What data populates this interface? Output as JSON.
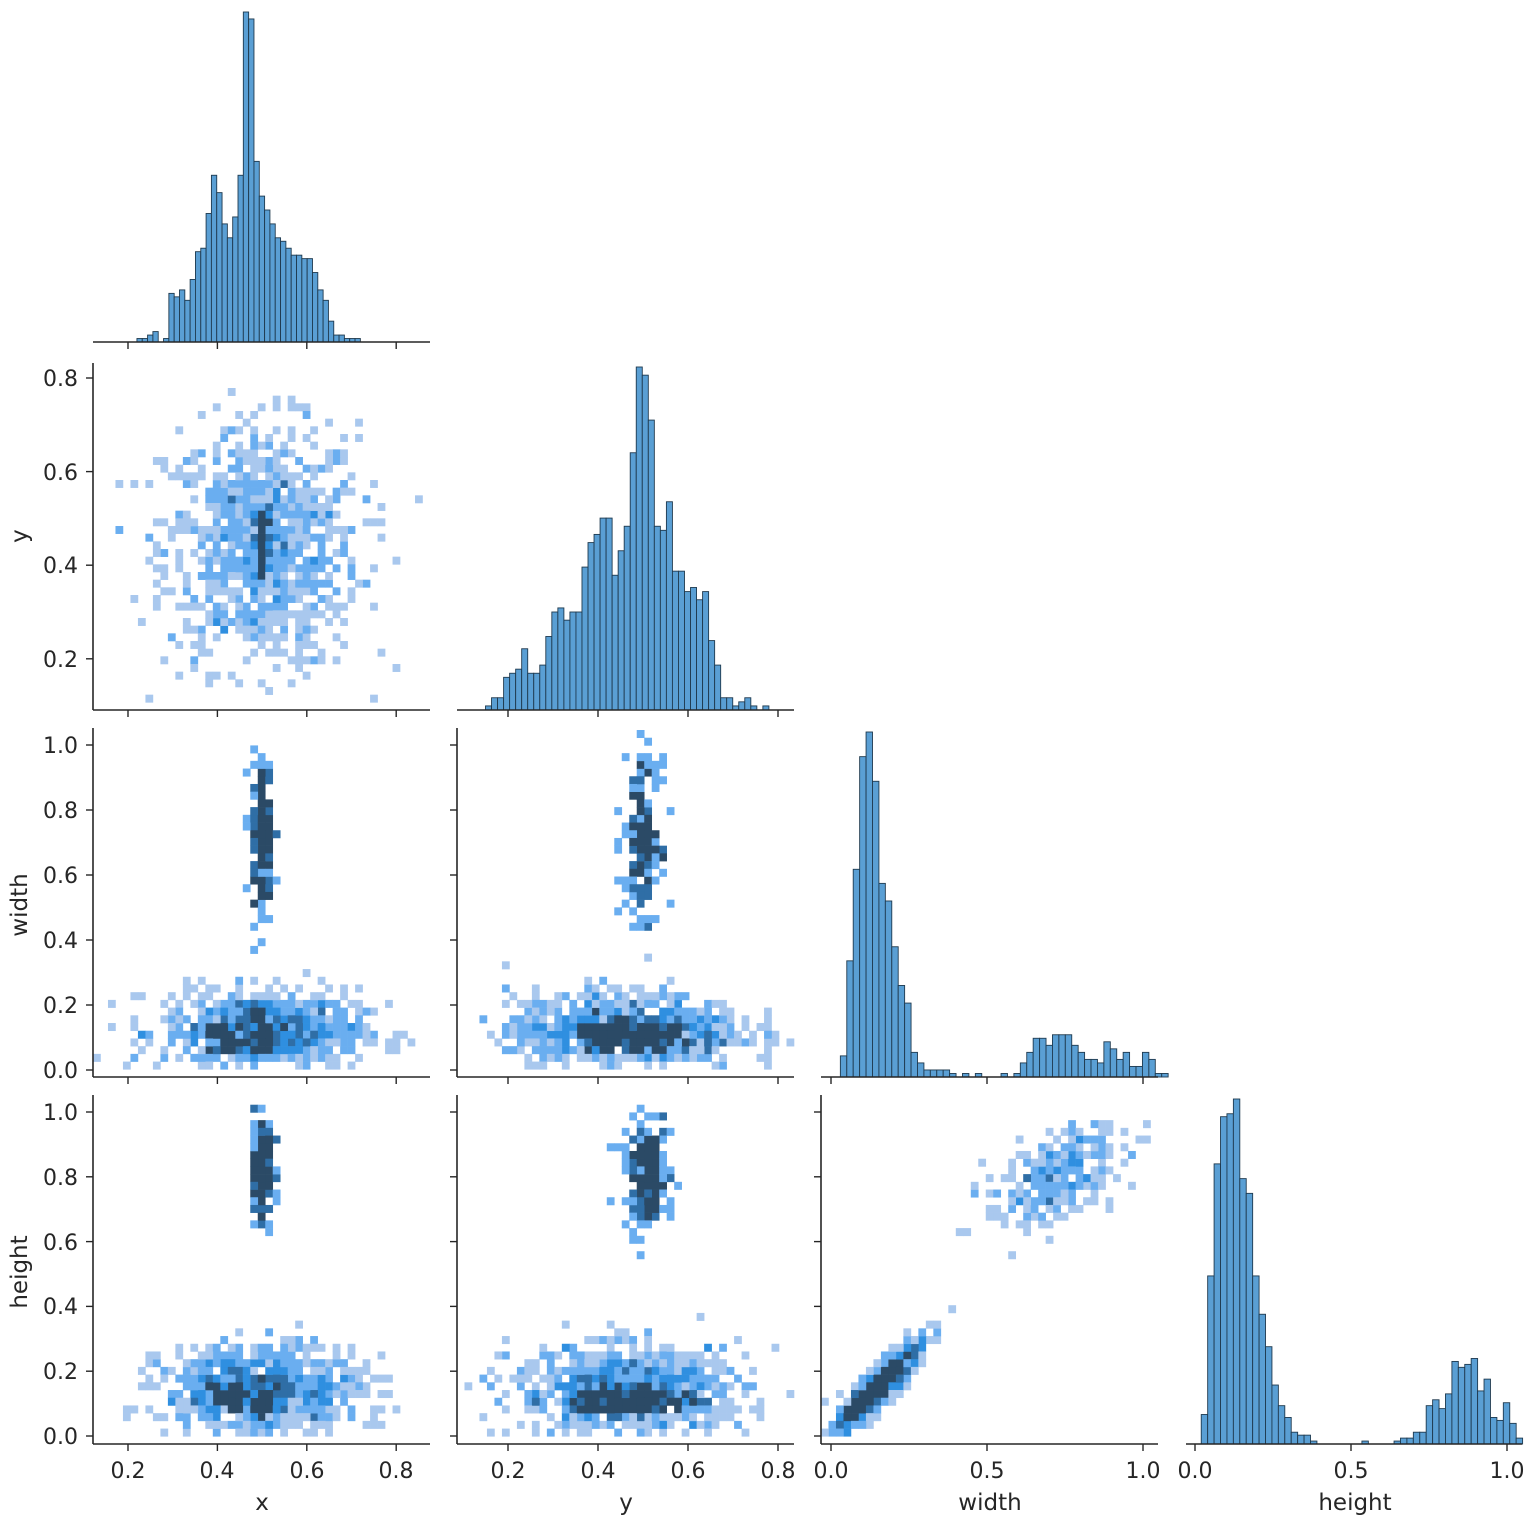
{
  "figure": {
    "type": "pairplot-corner",
    "variables": [
      "x",
      "y",
      "width",
      "height"
    ],
    "colors": {
      "hist_bar": "#5a9fd4",
      "hist_edge": "#1f3a4f",
      "bin_light": "#a9c8ee",
      "bin_mid": "#3d9cf0",
      "bin_dark": "#2b4a66",
      "axis": "#262626"
    }
  },
  "chart_data": [
    {
      "type": "bar",
      "title": "",
      "panel": "diag-x",
      "xlabel": "x",
      "ylabel": "",
      "bin_start": 0.22,
      "bin_width": 0.0119,
      "values": [
        1,
        1,
        2,
        3,
        0,
        1,
        14,
        13,
        15,
        12,
        18,
        26,
        27,
        37,
        48,
        43,
        34,
        30,
        36,
        48,
        95,
        93,
        52,
        42,
        38,
        34,
        30,
        29,
        27,
        25,
        25,
        24,
        24,
        20,
        15,
        12,
        6,
        2,
        2,
        1,
        1,
        1
      ],
      "xlim": [
        0.13,
        0.87
      ],
      "xticks": [
        0.2,
        0.4,
        0.6,
        0.8
      ]
    },
    {
      "type": "bar",
      "title": "",
      "panel": "diag-y",
      "xlabel": "y",
      "ylabel": "",
      "bin_start": 0.15,
      "bin_width": 0.0134,
      "values": [
        1,
        3,
        3,
        8,
        9,
        10,
        15,
        9,
        9,
        11,
        18,
        24,
        25,
        22,
        24,
        24,
        35,
        41,
        43,
        47,
        47,
        33,
        39,
        45,
        63,
        84,
        82,
        71,
        45,
        44,
        51,
        34,
        34,
        29,
        30,
        27,
        29,
        17,
        11,
        3,
        3,
        1,
        2,
        3,
        1,
        0,
        1
      ],
      "xlim": [
        0.09,
        0.83
      ],
      "xticks": [
        0.2,
        0.4,
        0.6,
        0.8
      ]
    },
    {
      "type": "bar",
      "title": "",
      "panel": "diag-width",
      "xlabel": "width",
      "ylabel": "",
      "bin_start": 0.03,
      "bin_width": 0.0206,
      "values": [
        6,
        33,
        59,
        91,
        98,
        84,
        55,
        50,
        37,
        26,
        21,
        7,
        4,
        2,
        2,
        2,
        2,
        1,
        0,
        1,
        0,
        1,
        0,
        0,
        0,
        1,
        0,
        1,
        4,
        7,
        11,
        11,
        9,
        12,
        12,
        12,
        9,
        7,
        5,
        5,
        4,
        10,
        8,
        5,
        7,
        3,
        3,
        7,
        5,
        1,
        1
      ],
      "xlim": [
        -0.03,
        1.07
      ],
      "xticks": [
        0.0,
        0.5,
        1.0
      ]
    },
    {
      "type": "bar",
      "title": "",
      "panel": "diag-height",
      "xlabel": "height",
      "ylabel": "",
      "bin_start": 0.02,
      "bin_width": 0.0206,
      "values": [
        10,
        57,
        95,
        111,
        112,
        117,
        90,
        85,
        57,
        44,
        33,
        20,
        13,
        9,
        4,
        3,
        3,
        1,
        0,
        0,
        0,
        0,
        0,
        0,
        0,
        1,
        0,
        0,
        0,
        0,
        1,
        2,
        2,
        4,
        4,
        13,
        15,
        12,
        17,
        28,
        26,
        27,
        29,
        18,
        22,
        9,
        8,
        14,
        7,
        2
      ],
      "xlim": [
        -0.03,
        1.07
      ],
      "xticks": [
        0.0,
        0.5,
        1.0
      ]
    },
    {
      "type": "heatmap",
      "panel": "x-vs-y",
      "xlabel": "x",
      "ylabel": "y",
      "xlim": [
        0.13,
        0.87
      ],
      "ylim": [
        0.1,
        0.84
      ],
      "yticks": [
        0.2,
        0.4,
        0.6,
        0.8
      ],
      "clusters": [
        {
          "cx": 0.5,
          "cy": 0.44,
          "sx": 0.11,
          "sy": 0.13,
          "n": 900,
          "dens": "light"
        },
        {
          "cx": 0.5,
          "cy": 0.5,
          "sx": 0.005,
          "sy": 0.01,
          "n": 50,
          "dens": "dark"
        },
        {
          "cx": 0.5,
          "cy": 0.42,
          "sx": 0.005,
          "sy": 0.02,
          "n": 25,
          "dens": "mid"
        }
      ]
    },
    {
      "type": "heatmap",
      "panel": "x-vs-width",
      "xlabel": "x",
      "ylabel": "width",
      "xlim": [
        0.13,
        0.87
      ],
      "ylim": [
        -0.03,
        1.04
      ],
      "yticks": [
        0.0,
        0.2,
        0.4,
        0.6,
        0.8,
        1.0
      ],
      "clusters": [
        {
          "cx": 0.5,
          "cy": 0.12,
          "sx": 0.11,
          "sy": 0.06,
          "n": 800,
          "dens": "light"
        },
        {
          "cx": 0.42,
          "cy": 0.1,
          "sx": 0.02,
          "sy": 0.02,
          "n": 40,
          "dens": "dark"
        },
        {
          "cx": 0.5,
          "cy": 0.11,
          "sx": 0.007,
          "sy": 0.025,
          "n": 60,
          "dens": "dark"
        },
        {
          "cx": 0.5,
          "cy": 0.72,
          "sx": 0.012,
          "sy": 0.12,
          "n": 180,
          "dens": "mid"
        }
      ]
    },
    {
      "type": "heatmap",
      "panel": "y-vs-width",
      "xlabel": "y",
      "ylabel": "width",
      "xlim": [
        0.09,
        0.83
      ],
      "ylim": [
        -0.03,
        1.04
      ],
      "clusters": [
        {
          "cx": 0.46,
          "cy": 0.12,
          "sx": 0.13,
          "sy": 0.06,
          "n": 800,
          "dens": "light"
        },
        {
          "cx": 0.48,
          "cy": 0.1,
          "sx": 0.07,
          "sy": 0.02,
          "n": 120,
          "dens": "dark"
        },
        {
          "cx": 0.5,
          "cy": 0.72,
          "sx": 0.02,
          "sy": 0.12,
          "n": 180,
          "dens": "mid"
        }
      ]
    },
    {
      "type": "heatmap",
      "panel": "x-vs-height",
      "xlabel": "x",
      "ylabel": "height",
      "xlim": [
        0.13,
        0.87
      ],
      "ylim": [
        -0.03,
        1.04
      ],
      "xticks": [
        0.2,
        0.4,
        0.6,
        0.8
      ],
      "yticks": [
        0.0,
        0.2,
        0.4,
        0.6,
        0.8,
        1.0
      ],
      "clusters": [
        {
          "cx": 0.5,
          "cy": 0.14,
          "sx": 0.11,
          "sy": 0.07,
          "n": 800,
          "dens": "light"
        },
        {
          "cx": 0.42,
          "cy": 0.13,
          "sx": 0.02,
          "sy": 0.02,
          "n": 40,
          "dens": "dark"
        },
        {
          "cx": 0.5,
          "cy": 0.1,
          "sx": 0.007,
          "sy": 0.025,
          "n": 60,
          "dens": "dark"
        },
        {
          "cx": 0.5,
          "cy": 0.82,
          "sx": 0.012,
          "sy": 0.07,
          "n": 180,
          "dens": "mid"
        }
      ]
    },
    {
      "type": "heatmap",
      "panel": "y-vs-height",
      "xlabel": "y",
      "ylabel": "height",
      "xlim": [
        0.09,
        0.83
      ],
      "ylim": [
        -0.03,
        1.04
      ],
      "xticks": [
        0.2,
        0.4,
        0.6,
        0.8
      ],
      "clusters": [
        {
          "cx": 0.47,
          "cy": 0.14,
          "sx": 0.13,
          "sy": 0.07,
          "n": 800,
          "dens": "light"
        },
        {
          "cx": 0.48,
          "cy": 0.11,
          "sx": 0.07,
          "sy": 0.02,
          "n": 120,
          "dens": "dark"
        },
        {
          "cx": 0.51,
          "cy": 0.8,
          "sx": 0.025,
          "sy": 0.08,
          "n": 180,
          "dens": "mid"
        }
      ]
    },
    {
      "type": "heatmap",
      "panel": "width-vs-height",
      "xlabel": "width",
      "ylabel": "height",
      "xlim": [
        -0.03,
        1.07
      ],
      "ylim": [
        -0.03,
        1.04
      ],
      "xticks": [
        0.0,
        0.5,
        1.0
      ],
      "clusters": [
        {
          "cx": 0.15,
          "cy": 0.15,
          "sx": 0.07,
          "sy": 0.07,
          "corr": 0.9,
          "n": 500,
          "dens": "light"
        },
        {
          "cx": 0.09,
          "cy": 0.09,
          "sx": 0.02,
          "sy": 0.02,
          "corr": 0.9,
          "n": 80,
          "dens": "dark"
        },
        {
          "cx": 0.72,
          "cy": 0.8,
          "sx": 0.11,
          "sy": 0.08,
          "corr": 0.6,
          "n": 260,
          "dens": "light"
        }
      ]
    }
  ],
  "labels": {
    "x": "x",
    "y": "y",
    "width": "width",
    "height": "height"
  },
  "ticks": {
    "x": [
      "0.2",
      "0.4",
      "0.6",
      "0.8"
    ],
    "y": [
      "0.2",
      "0.4",
      "0.6",
      "0.8"
    ],
    "width_y": [
      "0.0",
      "0.2",
      "0.4",
      "0.6",
      "0.8",
      "1.0"
    ],
    "height_y": [
      "0.0",
      "0.2",
      "0.4",
      "0.6",
      "0.8",
      "1.0"
    ],
    "width_x": [
      "0.0",
      "0.5",
      "1.0"
    ],
    "height_x": [
      "0.0",
      "0.5",
      "1.0"
    ]
  }
}
